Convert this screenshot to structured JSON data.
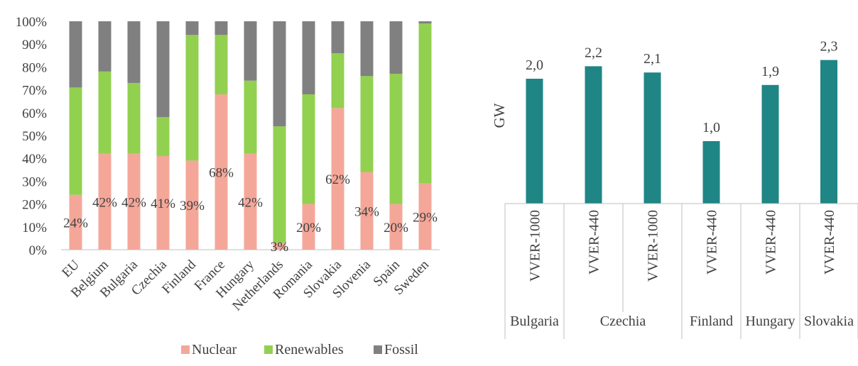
{
  "colors": {
    "nuclear": "#F4A799",
    "renewables": "#92D050",
    "fossil": "#808080",
    "capacity": "#1F8585",
    "axis": "#BFBFBF",
    "text": "#404040"
  },
  "chart_data": [
    {
      "type": "bar",
      "stacked": "percent",
      "categories": [
        "EU",
        "Belgium",
        "Bulgaria",
        "Czechia",
        "Finland",
        "France",
        "Hungary",
        "Netherlands",
        "Romania",
        "Slovakia",
        "Slovenia",
        "Spain",
        "Sweden"
      ],
      "series": [
        {
          "name": "Nuclear",
          "values": [
            24,
            42,
            42,
            41,
            39,
            68,
            42,
            3,
            20,
            62,
            34,
            20,
            29
          ]
        },
        {
          "name": "Renewables",
          "values": [
            47,
            36,
            31,
            17,
            55,
            26,
            32,
            51,
            48,
            24,
            42,
            57,
            70
          ]
        },
        {
          "name": "Fossil",
          "values": [
            29,
            22,
            27,
            42,
            6,
            6,
            26,
            46,
            32,
            14,
            24,
            23,
            1
          ]
        }
      ],
      "data_labels": [
        "24%",
        "42%",
        "42%",
        "41%",
        "39%",
        "68%",
        "42%",
        "3%",
        "20%",
        "62%",
        "34%",
        "20%",
        "29%"
      ],
      "yticks": [
        "0%",
        "10%",
        "20%",
        "30%",
        "40%",
        "50%",
        "60%",
        "70%",
        "80%",
        "90%",
        "100%"
      ],
      "ylim": [
        0,
        100
      ],
      "legend_position": "bottom",
      "grid": false
    },
    {
      "type": "bar",
      "ylabel": "GW",
      "categories": [
        "VVER-1000",
        "VVER-440",
        "VVER-1000",
        "VVER-440",
        "VVER-440",
        "VVER-440"
      ],
      "groups": [
        {
          "label": "Bulgaria",
          "count": 1
        },
        {
          "label": "Czechia",
          "count": 2
        },
        {
          "label": "Finland",
          "count": 1
        },
        {
          "label": "Hungary",
          "count": 1
        },
        {
          "label": "Slovakia",
          "count": 1
        }
      ],
      "values": [
        2.0,
        2.2,
        2.1,
        1.0,
        1.9,
        2.3
      ],
      "value_labels": [
        "2,0",
        "2,2",
        "2,1",
        "1,0",
        "1,9",
        "2,3"
      ],
      "ylim": [
        0,
        2.6
      ],
      "grid": false
    }
  ]
}
